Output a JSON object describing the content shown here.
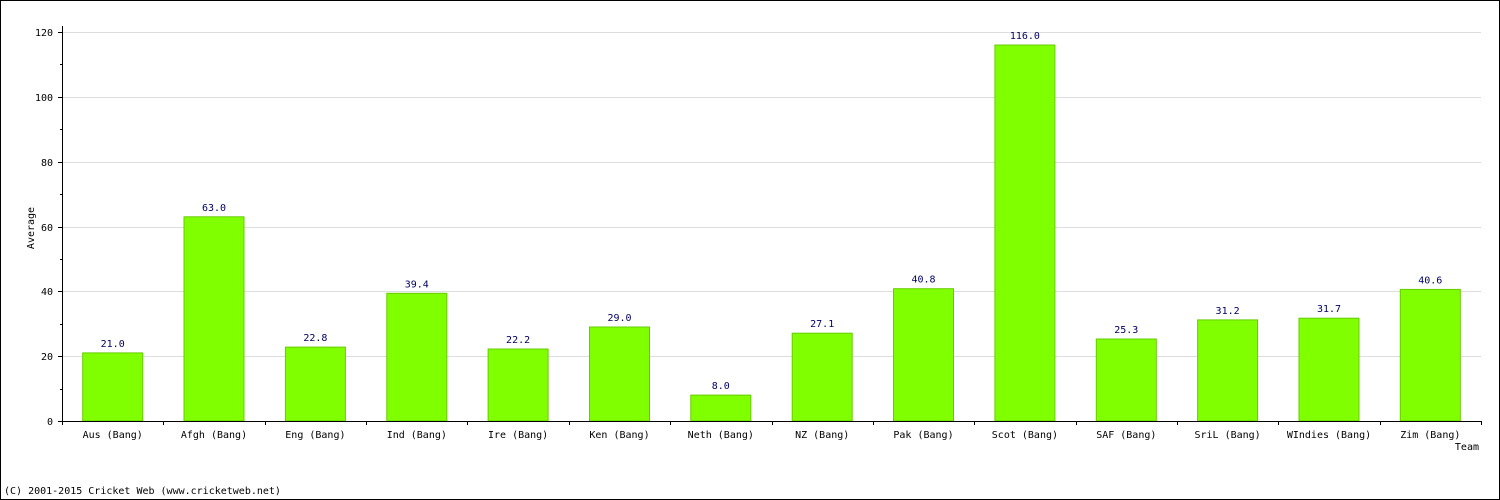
{
  "chart_data": {
    "type": "bar",
    "ylabel": "Average",
    "xlabel": "Team",
    "ylim": [
      0,
      120
    ],
    "yticks": [
      0,
      20,
      40,
      60,
      80,
      100,
      120
    ],
    "grid": true,
    "categories": [
      "Aus (Bang)",
      "Afgh (Bang)",
      "Eng (Bang)",
      "Ind (Bang)",
      "Ire (Bang)",
      "Ken (Bang)",
      "Neth (Bang)",
      "NZ (Bang)",
      "Pak (Bang)",
      "Scot (Bang)",
      "SAF (Bang)",
      "SriL (Bang)",
      "WIndies (Bang)",
      "Zim (Bang)"
    ],
    "values": [
      21.0,
      63.0,
      22.8,
      39.4,
      22.2,
      29.0,
      8.0,
      27.1,
      40.8,
      116.0,
      25.3,
      31.2,
      31.7,
      40.6
    ],
    "value_labels": [
      "21.0",
      "63.0",
      "22.8",
      "39.4",
      "22.2",
      "29.0",
      "8.0",
      "27.1",
      "40.8",
      "116.0",
      "25.3",
      "31.2",
      "31.7",
      "40.6"
    ],
    "colors": {
      "bar": "#80ff00",
      "bar_edge": "#66cc00",
      "value_label": "#000066",
      "grid": "#dddddd"
    }
  },
  "footer": {
    "copyright": "(C) 2001-2015 Cricket Web (www.cricketweb.net)"
  }
}
